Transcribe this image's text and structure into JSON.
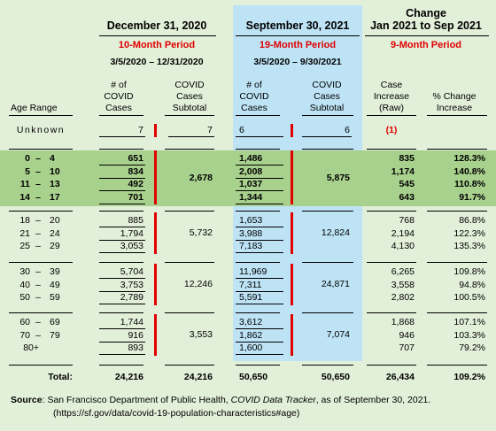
{
  "headers": {
    "p1": {
      "title": "December 31, 2020",
      "period": "10-Month Period",
      "range": "3/5/2020 – 12/31/2020"
    },
    "p2": {
      "title": "September 30, 2021",
      "period": "19-Month Period",
      "range": "3/5/2020 – 9/30/2021"
    },
    "p3": {
      "title_line1": "Change",
      "title_line2": "Jan 2021 to Sep 2021",
      "period": "9-Month Period"
    }
  },
  "columns": {
    "age": "Age Range",
    "cases1": [
      "# of",
      "COVID",
      "Cases"
    ],
    "subtotal1": [
      "COVID",
      "Cases",
      "Subtotal"
    ],
    "cases2": [
      "# of",
      "COVID",
      "Cases"
    ],
    "subtotal2": [
      "COVID",
      "Cases",
      "Subtotal"
    ],
    "increase": [
      "Case",
      "Increase",
      "(Raw)"
    ],
    "pct": [
      "% Change",
      "Increase"
    ]
  },
  "unknown": {
    "label": "Unknown",
    "cases1": "7",
    "subtotal1": "7",
    "cases2": "6",
    "subtotal2": "6",
    "increase": "(1)"
  },
  "groups": [
    {
      "highlight": true,
      "subtotal1": "2,678",
      "subtotal2": "5,875",
      "rows": [
        {
          "lo": "0",
          "hi": "4",
          "cases1": "651",
          "cases2": "1,486",
          "increase": "835",
          "pct": "128.3%"
        },
        {
          "lo": "5",
          "hi": "10",
          "cases1": "834",
          "cases2": "2,008",
          "increase": "1,174",
          "pct": "140.8%"
        },
        {
          "lo": "11",
          "hi": "13",
          "cases1": "492",
          "cases2": "1,037",
          "increase": "545",
          "pct": "110.8%"
        },
        {
          "lo": "14",
          "hi": "17",
          "cases1": "701",
          "cases2": "1,344",
          "increase": "643",
          "pct": "91.7%"
        }
      ]
    },
    {
      "highlight": false,
      "subtotal1": "5,732",
      "subtotal2": "12,824",
      "rows": [
        {
          "lo": "18",
          "hi": "20",
          "cases1": "885",
          "cases2": "1,653",
          "increase": "768",
          "pct": "86.8%"
        },
        {
          "lo": "21",
          "hi": "24",
          "cases1": "1,794",
          "cases2": "3,988",
          "increase": "2,194",
          "pct": "122.3%"
        },
        {
          "lo": "25",
          "hi": "29",
          "cases1": "3,053",
          "cases2": "7,183",
          "increase": "4,130",
          "pct": "135.3%"
        }
      ]
    },
    {
      "highlight": false,
      "subtotal1": "12,246",
      "subtotal2": "24,871",
      "rows": [
        {
          "lo": "30",
          "hi": "39",
          "cases1": "5,704",
          "cases2": "11,969",
          "increase": "6,265",
          "pct": "109.8%"
        },
        {
          "lo": "40",
          "hi": "49",
          "cases1": "3,753",
          "cases2": "7,311",
          "increase": "3,558",
          "pct": "94.8%"
        },
        {
          "lo": "50",
          "hi": "59",
          "cases1": "2,789",
          "cases2": "5,591",
          "increase": "2,802",
          "pct": "100.5%"
        }
      ]
    },
    {
      "highlight": false,
      "subtotal1": "3,553",
      "subtotal2": "7,074",
      "rows": [
        {
          "lo": "60",
          "hi": "69",
          "cases1": "1,744",
          "cases2": "3,612",
          "increase": "1,868",
          "pct": "107.1%"
        },
        {
          "lo": "70",
          "hi": "79",
          "cases1": "916",
          "cases2": "1,862",
          "increase": "946",
          "pct": "103.3%"
        },
        {
          "lo": "80+",
          "hi": "",
          "cases1": "893",
          "cases2": "1,600",
          "increase": "707",
          "pct": "79.2%"
        }
      ]
    }
  ],
  "total": {
    "label": "Total:",
    "cases1": "24,216",
    "subtotal1": "24,216",
    "cases2": "50,650",
    "subtotal2": "50,650",
    "increase": "26,434",
    "pct": "109.2%"
  },
  "source": {
    "label": "Source",
    "text_before": ": San Francisco Department of Public Health, ",
    "italic": "COVID Data Tracker",
    "text_after": ", as of September 30, 2021.",
    "url": "(https://sf.gov/data/covid-19-population-characteristics#age)"
  }
}
